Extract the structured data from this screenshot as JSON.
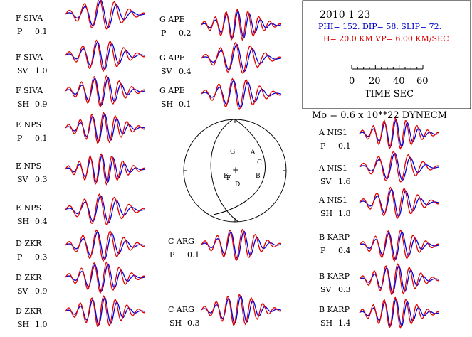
{
  "header": {
    "date": "2010  1 23",
    "mechanism": "PHI= 152. DIP= 58. SLIP=  72.",
    "depth_velocity": "H= 20.0 KM  VP= 6.00 KM/SEC",
    "time_scale": {
      "ticks": [
        "0",
        "20",
        "40",
        "60"
      ],
      "label": "TIME  SEC"
    }
  },
  "moment": "Mo =  0.6 x 10**22 DYNECM",
  "colors": {
    "observed": "#0000e0",
    "synthetic": "#e00000",
    "text": "#000000",
    "mechanism_text": "#0000cc",
    "depth_text": "#dd0000"
  },
  "stations": [
    {
      "id": "f-siva-p",
      "station": "F SIVA",
      "comp": "P",
      "amp": "0.1"
    },
    {
      "id": "f-siva-sv",
      "station": "F SIVA",
      "comp": "SV",
      "amp": "1.0"
    },
    {
      "id": "f-siva-sh",
      "station": "F SIVA",
      "comp": "SH",
      "amp": "0.9"
    },
    {
      "id": "e-nps-p",
      "station": "E NPS",
      "comp": "P",
      "amp": "0.1"
    },
    {
      "id": "e-nps-sv",
      "station": "E NPS",
      "comp": "SV",
      "amp": "0.3"
    },
    {
      "id": "e-nps-sh",
      "station": "E NPS",
      "comp": "SH",
      "amp": "0.4"
    },
    {
      "id": "d-zkr-p",
      "station": "D ZKR",
      "comp": "P",
      "amp": "0.3"
    },
    {
      "id": "d-zkr-sv",
      "station": "D ZKR",
      "comp": "SV",
      "amp": "0.9"
    },
    {
      "id": "d-zkr-sh",
      "station": "D ZKR",
      "comp": "SH",
      "amp": "1.0"
    },
    {
      "id": "g-ape-p",
      "station": "G APE",
      "comp": "P",
      "amp": "0.2"
    },
    {
      "id": "g-ape-sv",
      "station": "G APE",
      "comp": "SV",
      "amp": "0.4"
    },
    {
      "id": "g-ape-sh",
      "station": "G APE",
      "comp": "SH",
      "amp": "0.1"
    },
    {
      "id": "c-arg-p",
      "station": "C ARG",
      "comp": "P",
      "amp": "0.1"
    },
    {
      "id": "c-arg-sh",
      "station": "C ARG",
      "comp": "SH",
      "amp": "0.3"
    },
    {
      "id": "a-nis1-p",
      "station": "A NIS1",
      "comp": "P",
      "amp": "0.1"
    },
    {
      "id": "a-nis1-sv",
      "station": "A NIS1",
      "comp": "SV",
      "amp": "1.6"
    },
    {
      "id": "a-nis1-sh",
      "station": "A NIS1",
      "comp": "SH",
      "amp": "1.8"
    },
    {
      "id": "b-karp-p",
      "station": "B KARP",
      "comp": "P",
      "amp": "0.4"
    },
    {
      "id": "b-karp-sv",
      "station": "B KARP",
      "comp": "SV",
      "amp": "0.3"
    },
    {
      "id": "b-karp-sh",
      "station": "B KARP",
      "comp": "SH",
      "amp": "1.4"
    }
  ],
  "beachball": {
    "station_letters": [
      "G",
      "A",
      "C",
      "B",
      "E",
      "F",
      "D"
    ],
    "center_mark": "+"
  }
}
